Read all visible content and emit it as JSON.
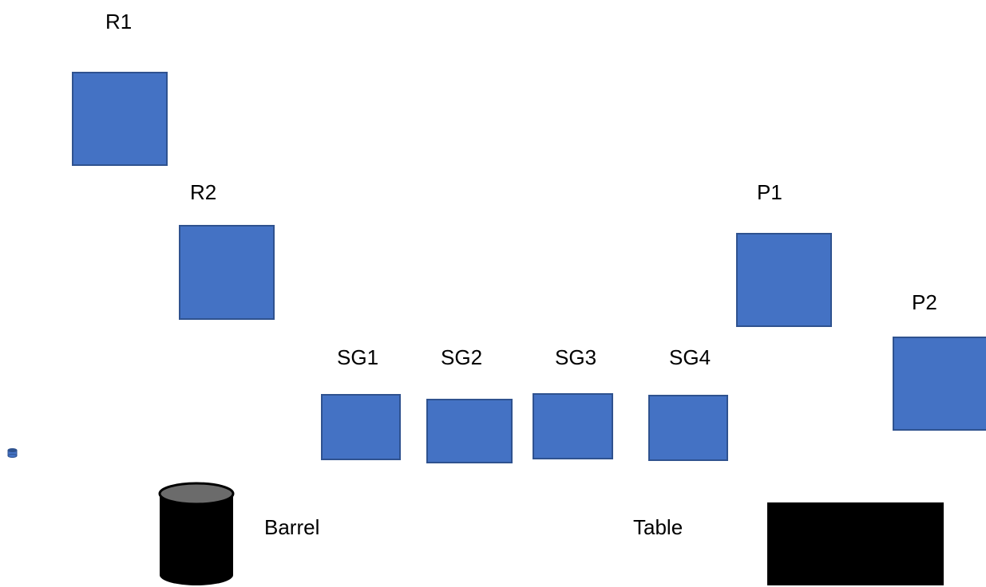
{
  "colors": {
    "box_fill": "#4472c4",
    "box_border": "#2f528f",
    "barrel_body": "#000000",
    "barrel_top": "#6b6b6b",
    "table_fill": "#000000"
  },
  "labels": {
    "r1": "R1",
    "r2": "R2",
    "p1": "P1",
    "p2": "P2",
    "sg1": "SG1",
    "sg2": "SG2",
    "sg3": "SG3",
    "sg4": "SG4",
    "barrel": "Barrel",
    "table": "Table"
  }
}
